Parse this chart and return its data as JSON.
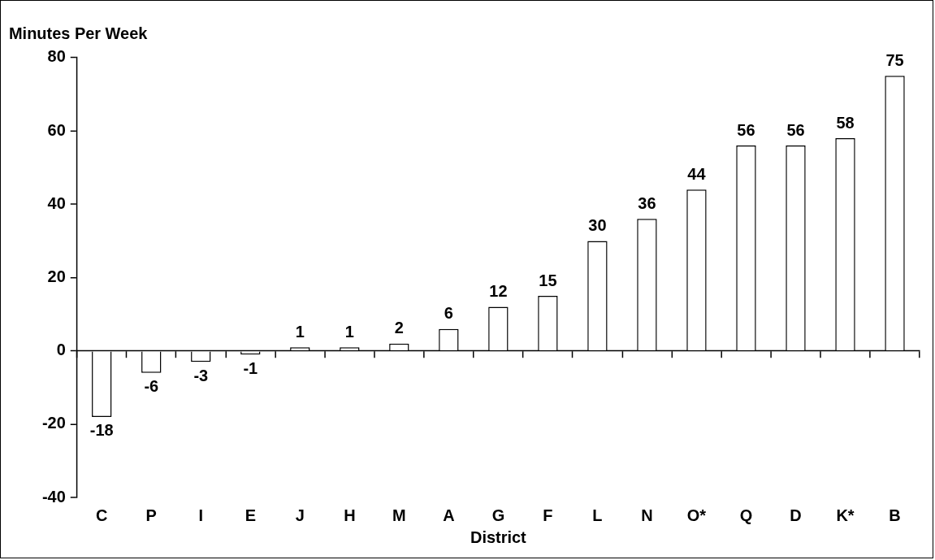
{
  "chart_data": {
    "type": "bar",
    "xlabel": "District",
    "ylabel": "Minutes Per Week",
    "categories": [
      "C",
      "P",
      "I",
      "E",
      "J",
      "H",
      "M",
      "A",
      "G",
      "F",
      "L",
      "N",
      "O*",
      "Q",
      "D",
      "K*",
      "B"
    ],
    "values": [
      -18,
      -6,
      -3,
      -1,
      1,
      1,
      2,
      6,
      12,
      15,
      30,
      36,
      44,
      56,
      56,
      58,
      75
    ],
    "color": "#ffffff",
    "ylim": [
      -40,
      80
    ],
    "yticks": [
      -40,
      -20,
      0,
      20,
      40,
      60,
      80
    ],
    "legend": false,
    "data_labels": true
  }
}
